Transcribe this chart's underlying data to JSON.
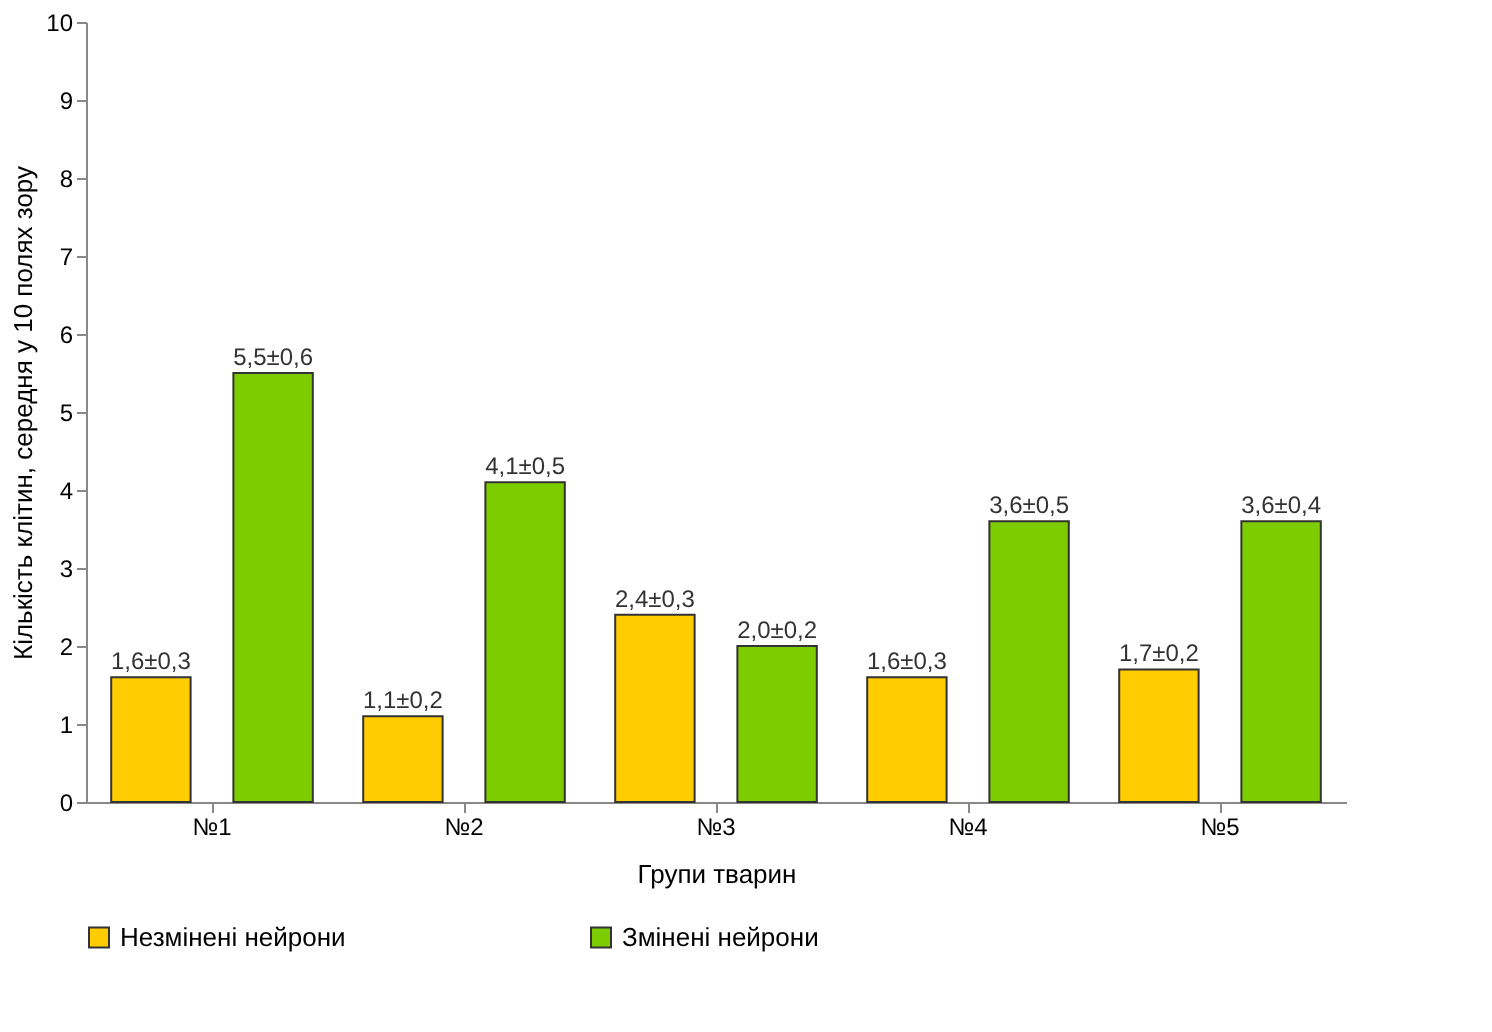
{
  "chart_data": {
    "type": "bar",
    "xlabel": "Групи тварин",
    "ylabel": "Кількість клітин, середня у 10 полях зору",
    "categories": [
      "№1",
      "№2",
      "№3",
      "№4",
      "№5"
    ],
    "series": [
      {
        "name": "Незмінені нейрони",
        "color": "#ffcc00",
        "values": [
          1.6,
          1.1,
          2.4,
          1.6,
          1.7
        ],
        "value_labels": [
          "1,6±0,3",
          "1,1±0,2",
          "2,4±0,3",
          "1,6±0,3",
          "1,7±0,2"
        ]
      },
      {
        "name": "Змінені нейрони",
        "color": "#7dcc00",
        "values": [
          5.5,
          4.1,
          2.0,
          3.6,
          3.6
        ],
        "value_labels": [
          "5,5±0,6",
          "4,1±0,5",
          "2,0±0,2",
          "3,6±0,5",
          "3,6±0,4"
        ]
      }
    ],
    "ylim": [
      0,
      10
    ],
    "yticks": [
      0,
      1,
      2,
      3,
      4,
      5,
      6,
      7,
      8,
      9,
      10
    ],
    "grid": false,
    "legend": "bottom"
  }
}
